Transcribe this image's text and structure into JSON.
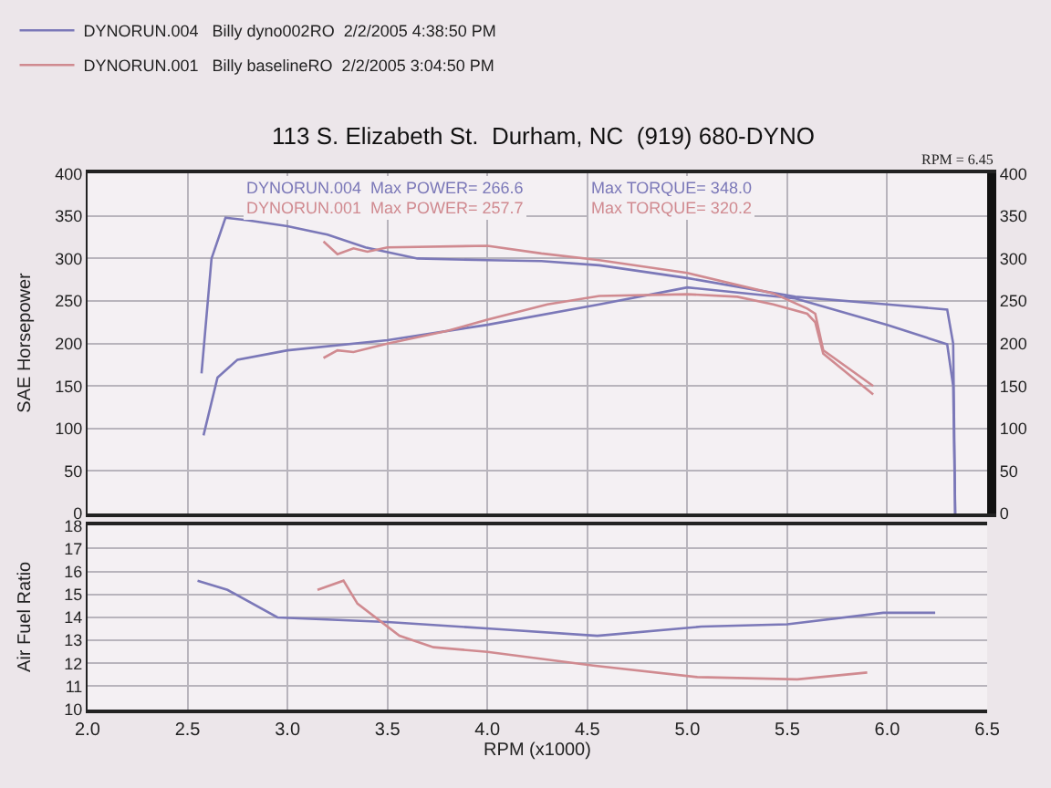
{
  "chart_data": [
    {
      "type": "line",
      "title": "113 S. Elizabeth St.  Durham, NC  (919) 680-DYNO",
      "ylabel": "SAE Horsepower",
      "xlim": [
        2.0,
        6.5
      ],
      "xticks": [
        2.0,
        2.5,
        3.0,
        3.5,
        4.0,
        4.5,
        5.0,
        5.5,
        6.0,
        6.5
      ],
      "tick_labels": "y",
      "ylim": [
        0,
        400
      ],
      "yticks": [
        0,
        50,
        100,
        150,
        200,
        250,
        300,
        350,
        400
      ],
      "y2lim": [
        0,
        400
      ],
      "y2ticks": [
        0,
        50,
        100,
        150,
        200,
        250,
        300,
        350,
        400
      ],
      "grid": true,
      "legend": "top left",
      "marker": "none",
      "line_style": "solid",
      "annotations": [
        "DYNORUN.004  Max POWER= 266.6",
        "DYNORUN.001  Max POWER= 257.7",
        "Max TORQUE= 348.0",
        "Max TORQUE= 320.2",
        "RPM = 6.45"
      ],
      "series": [
        {
          "name": "DYNORUN.004   Billy dyno002RO  2/2/2005 4:38:50 PM",
          "color": "#7b78b8",
          "axis": "y2",
          "x": [
            2.57,
            2.62,
            2.69,
            2.8,
            3.0,
            3.2,
            3.39,
            3.65,
            4.0,
            4.27,
            4.56,
            5.0,
            5.54,
            6.0,
            6.3,
            6.33,
            6.34
          ],
          "values": [
            165,
            300,
            348,
            345,
            338,
            328,
            313,
            300,
            298,
            297,
            292,
            277,
            255,
            246,
            240,
            200,
            0
          ]
        },
        {
          "color": "#7b78b8",
          "x": [
            2.58,
            2.65,
            2.75,
            3.0,
            3.5,
            4.0,
            4.56,
            5.0,
            5.54,
            6.0,
            6.3,
            6.33,
            6.34
          ],
          "values": [
            92,
            160,
            181,
            192,
            204,
            222,
            246,
            266,
            253,
            222,
            199,
            150,
            0
          ]
        },
        {
          "name": "DYNORUN.001   Billy baselineRO  2/2/2005 3:04:50 PM",
          "color": "#d08a90",
          "axis": "y2",
          "x": [
            3.18,
            3.25,
            3.33,
            3.4,
            3.5,
            4.0,
            4.27,
            4.56,
            5.0,
            5.43,
            5.6,
            5.64,
            5.68,
            5.93
          ],
          "values": [
            320,
            305,
            312,
            308,
            313,
            315,
            306,
            298,
            283,
            259,
            241,
            235,
            192,
            150
          ]
        },
        {
          "color": "#d08a90",
          "x": [
            3.18,
            3.25,
            3.33,
            3.5,
            3.8,
            4.0,
            4.3,
            4.56,
            5.0,
            5.25,
            5.43,
            5.6,
            5.64,
            5.68,
            5.93
          ],
          "values": [
            183,
            192,
            190,
            200,
            215,
            228,
            246,
            256,
            258,
            255,
            246,
            235,
            225,
            188,
            140
          ]
        }
      ]
    },
    {
      "type": "line",
      "xlabel": "RPM (x1000)",
      "ylabel": "Air Fuel Ratio",
      "xlim": [
        2.0,
        6.5
      ],
      "xticks": [
        {
          "value": 2.0,
          "label": "2.0"
        },
        2.5,
        {
          "value": 3.0,
          "label": "3.0"
        },
        3.5,
        {
          "value": 4.0,
          "label": "4.0"
        },
        4.5,
        {
          "value": 5.0,
          "label": "5.0"
        },
        5.5,
        {
          "value": 6.0,
          "label": "6.0"
        },
        6.5
      ],
      "ylim": [
        10,
        18
      ],
      "yticks": [
        10,
        11,
        12,
        13,
        14,
        15,
        16,
        17,
        18
      ],
      "grid": true,
      "marker": "none",
      "line_style": "solid",
      "series": [
        {
          "color": "#7b78b8",
          "x": [
            2.55,
            2.7,
            2.95,
            3.5,
            4.03,
            4.55,
            5.07,
            5.5,
            5.98,
            6.24
          ],
          "values": [
            15.6,
            15.2,
            14.0,
            13.8,
            13.5,
            13.2,
            13.6,
            13.7,
            14.2,
            14.2
          ]
        },
        {
          "color": "#d08a90",
          "x": [
            3.15,
            3.28,
            3.35,
            3.56,
            3.73,
            4.0,
            4.53,
            5.05,
            5.55,
            5.9
          ],
          "values": [
            15.2,
            15.6,
            14.6,
            13.2,
            12.7,
            12.5,
            11.9,
            11.4,
            11.3,
            11.6
          ]
        }
      ]
    }
  ]
}
